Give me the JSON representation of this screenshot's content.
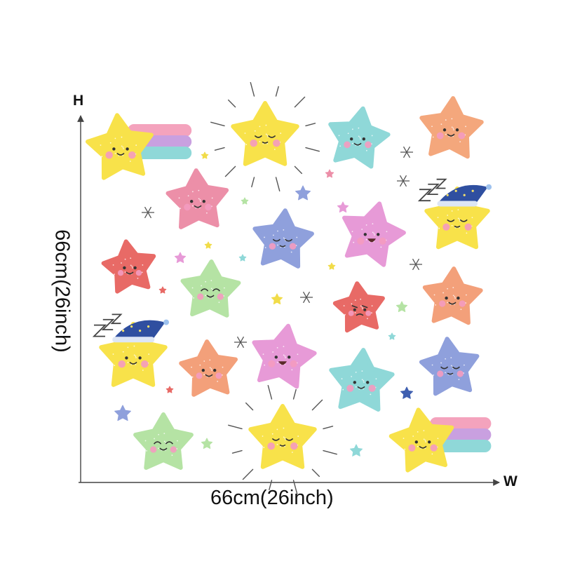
{
  "dimensions": {
    "h_label": "H",
    "w_label": "W",
    "width_text": "66cm(26inch)",
    "height_text": "66cm(26inch)"
  },
  "palette": {
    "yellow": "#f8e24a",
    "pink": "#ec8fa8",
    "coral": "#e86a66",
    "peach": "#f4a77c",
    "orange": "#f3a07a",
    "teal": "#8fd8d8",
    "blue": "#8fa0dc",
    "green": "#b5e3a4",
    "magenta": "#e79ad7",
    "nightcap": "#2f4fa0",
    "cheek": "#f49bc0",
    "outline": "#444444"
  },
  "stars": [
    {
      "color": "yellow",
      "face": "smile",
      "tail": true
    },
    {
      "color": "yellow",
      "face": "sleepy",
      "rays": true
    },
    {
      "color": "teal",
      "face": "smile"
    },
    {
      "color": "peach",
      "face": "cute"
    },
    {
      "color": "pink",
      "face": "smile"
    },
    {
      "color": "blue",
      "face": "sleepy"
    },
    {
      "color": "magenta",
      "face": "laugh"
    },
    {
      "color": "yellow",
      "face": "sleepy",
      "nightcap": true
    },
    {
      "color": "coral",
      "face": "smile"
    },
    {
      "color": "green",
      "face": "happy"
    },
    {
      "color": "coral",
      "face": "grumpy"
    },
    {
      "color": "orange",
      "face": "smile"
    },
    {
      "color": "yellow",
      "face": "smile",
      "nightcap": true
    },
    {
      "color": "orange",
      "face": "smile"
    },
    {
      "color": "magenta",
      "face": "laugh"
    },
    {
      "color": "teal",
      "face": "smile"
    },
    {
      "color": "blue",
      "face": "sleepy"
    },
    {
      "color": "green",
      "face": "happy"
    },
    {
      "color": "yellow",
      "face": "sleepy",
      "rays": true
    },
    {
      "color": "yellow",
      "face": "smile",
      "tail": true
    }
  ]
}
